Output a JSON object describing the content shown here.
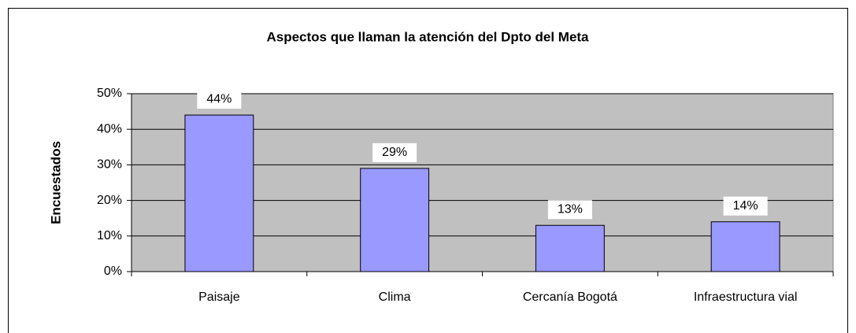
{
  "chart_data": {
    "type": "bar",
    "title": "Aspectos que llaman la atención del Dpto del Meta",
    "y_label": "Encuestados",
    "categories": [
      "Paisaje",
      "Clima",
      "Cercanía Bogotá",
      "Infraestructura vial"
    ],
    "values": [
      44,
      29,
      13,
      14
    ],
    "value_labels": [
      "44%",
      "29%",
      "13%",
      "14%"
    ],
    "color": "#9999ff",
    "ylim": [
      0,
      50
    ],
    "yticks": [
      {
        "value": 0,
        "label": "0%"
      },
      {
        "value": 10,
        "label": "10%"
      },
      {
        "value": 20,
        "label": "20%"
      },
      {
        "value": 30,
        "label": "30%"
      },
      {
        "value": 40,
        "label": "40%"
      },
      {
        "value": 50,
        "label": "50%"
      }
    ],
    "grid": true
  }
}
